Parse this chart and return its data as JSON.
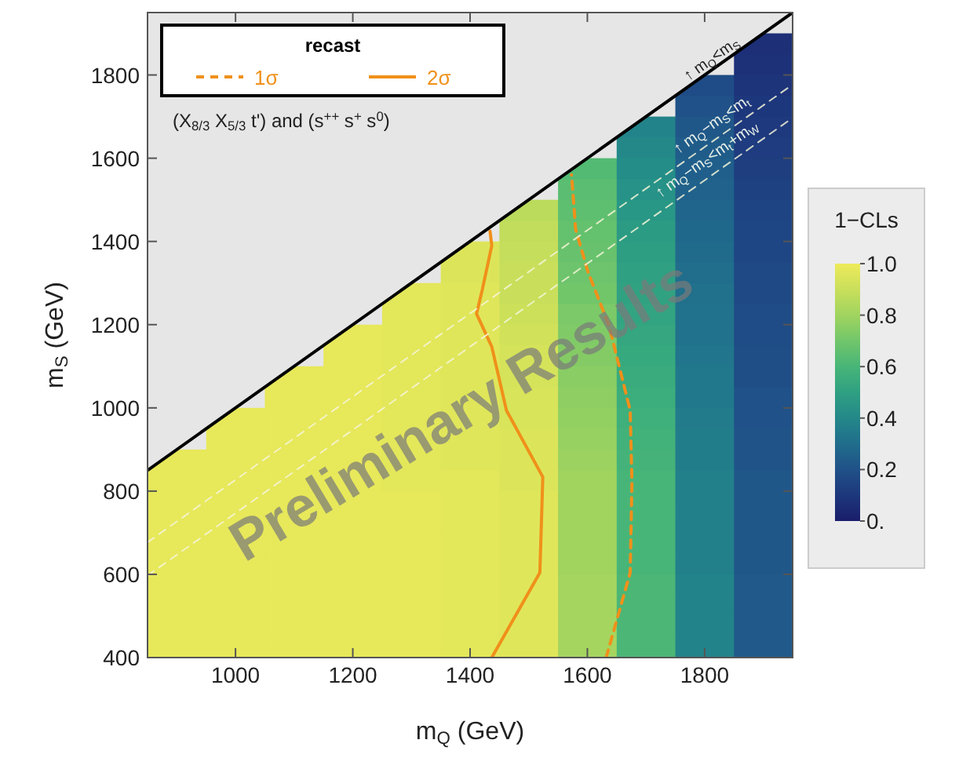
{
  "chart_data": {
    "type": "heatmap",
    "xlabel": "m$_{Q}$ (GeV)",
    "ylabel": "m$_{S}$ (GeV)",
    "clabel": "1−CLs",
    "legend_title": "recast",
    "legend": "top left",
    "x": [
      900,
      1000,
      1100,
      1200,
      1300,
      1400,
      1500,
      1600,
      1700,
      1800,
      1900
    ],
    "y": [
      1875,
      1825,
      1775,
      1725,
      1675,
      1625,
      1575,
      1525,
      1475,
      1425,
      1375,
      1325,
      1275,
      1225,
      1175,
      1125,
      1075,
      1025,
      975,
      925,
      875,
      825,
      775,
      725,
      675,
      625,
      575,
      525,
      475,
      425
    ],
    "xlim": [
      850,
      1950
    ],
    "xticks": [
      1000,
      1200,
      1400,
      1600,
      1800
    ],
    "ylim": [
      400,
      1950
    ],
    "yticks": [
      400,
      600,
      800,
      1000,
      1200,
      1400,
      1600,
      1800
    ],
    "clim": [
      0,
      1
    ],
    "cticks": [
      {
        "value": 0,
        "label": "0."
      },
      0.2,
      0.4,
      0.6,
      0.8,
      {
        "value": 1,
        "label": "1.0"
      }
    ],
    "cells": [
      [
        null,
        null,
        null,
        null,
        null,
        null,
        null,
        null,
        null,
        null,
        0.07
      ],
      [
        null,
        null,
        null,
        null,
        null,
        null,
        null,
        null,
        null,
        null,
        0.08
      ],
      [
        null,
        null,
        null,
        null,
        null,
        null,
        null,
        null,
        null,
        0.18,
        0.09
      ],
      [
        null,
        null,
        null,
        null,
        null,
        null,
        null,
        null,
        null,
        0.2,
        0.1
      ],
      [
        null,
        null,
        null,
        null,
        null,
        null,
        null,
        null,
        0.38,
        0.22,
        0.11
      ],
      [
        null,
        null,
        null,
        null,
        null,
        null,
        null,
        null,
        0.4,
        0.24,
        0.12
      ],
      [
        null,
        null,
        null,
        null,
        null,
        null,
        null,
        0.63,
        0.42,
        0.25,
        0.13
      ],
      [
        null,
        null,
        null,
        null,
        null,
        null,
        null,
        0.65,
        0.44,
        0.26,
        0.14
      ],
      [
        null,
        null,
        null,
        null,
        null,
        null,
        0.86,
        0.66,
        0.46,
        0.27,
        0.15
      ],
      [
        null,
        null,
        null,
        null,
        null,
        null,
        0.88,
        0.67,
        0.48,
        0.28,
        0.16
      ],
      [
        null,
        null,
        null,
        null,
        null,
        0.95,
        0.89,
        0.68,
        0.49,
        0.29,
        0.16
      ],
      [
        null,
        null,
        null,
        null,
        null,
        0.95,
        0.9,
        0.69,
        0.5,
        0.3,
        0.17
      ],
      [
        null,
        null,
        null,
        null,
        0.97,
        0.96,
        0.9,
        0.7,
        0.51,
        0.31,
        0.17
      ],
      [
        null,
        null,
        null,
        null,
        0.97,
        0.96,
        0.91,
        0.72,
        0.52,
        0.32,
        0.18
      ],
      [
        null,
        null,
        null,
        0.98,
        0.97,
        0.96,
        0.92,
        0.73,
        0.53,
        0.32,
        0.18
      ],
      [
        null,
        null,
        null,
        0.98,
        0.97,
        0.96,
        0.93,
        0.74,
        0.54,
        0.33,
        0.19
      ],
      [
        null,
        null,
        0.98,
        0.98,
        0.97,
        0.96,
        0.93,
        0.75,
        0.55,
        0.34,
        0.19
      ],
      [
        null,
        null,
        0.98,
        0.98,
        0.97,
        0.96,
        0.94,
        0.76,
        0.56,
        0.34,
        0.2
      ],
      [
        null,
        0.98,
        0.98,
        0.98,
        0.97,
        0.96,
        0.94,
        0.77,
        0.57,
        0.35,
        0.2
      ],
      [
        null,
        0.98,
        0.98,
        0.98,
        0.97,
        0.96,
        0.95,
        0.78,
        0.58,
        0.36,
        0.21
      ],
      [
        0.98,
        0.98,
        0.98,
        0.98,
        0.97,
        0.96,
        0.95,
        0.79,
        0.59,
        0.36,
        0.21
      ],
      [
        0.98,
        0.98,
        0.98,
        0.98,
        0.97,
        0.97,
        0.95,
        0.8,
        0.6,
        0.37,
        0.22
      ],
      [
        0.98,
        0.98,
        0.98,
        0.98,
        0.98,
        0.97,
        0.96,
        0.8,
        0.6,
        0.37,
        0.22
      ],
      [
        0.98,
        0.98,
        0.98,
        0.98,
        0.98,
        0.97,
        0.96,
        0.8,
        0.6,
        0.37,
        0.22
      ],
      [
        0.98,
        0.98,
        0.98,
        0.98,
        0.98,
        0.97,
        0.96,
        0.8,
        0.6,
        0.37,
        0.22
      ],
      [
        0.98,
        0.98,
        0.98,
        0.98,
        0.98,
        0.97,
        0.96,
        0.8,
        0.6,
        0.37,
        0.22
      ],
      [
        0.98,
        0.98,
        0.98,
        0.98,
        0.98,
        0.97,
        0.96,
        0.81,
        0.61,
        0.38,
        0.23
      ],
      [
        0.98,
        0.98,
        0.98,
        0.98,
        0.98,
        0.97,
        0.96,
        0.81,
        0.61,
        0.38,
        0.23
      ],
      [
        0.98,
        0.98,
        0.98,
        0.98,
        0.98,
        0.97,
        0.96,
        0.81,
        0.61,
        0.38,
        0.23
      ],
      [
        0.98,
        0.98,
        0.98,
        0.98,
        0.98,
        0.97,
        0.96,
        0.81,
        0.61,
        0.38,
        0.23
      ]
    ],
    "series": [
      {
        "type": "line",
        "name": "1σ",
        "color": "#f0901a",
        "line_style": "dashed",
        "x": [
          1632,
          1673,
          1676,
          1673,
          1637,
          1601,
          1580,
          1573
        ],
        "values": [
          400,
          604,
          820,
          994,
          1197,
          1327,
          1429,
          1560
        ]
      },
      {
        "type": "line",
        "name": "2σ",
        "color": "#f0901a",
        "line_style": "solid",
        "x": [
          1437,
          1519,
          1524,
          1462,
          1437,
          1411,
          1421,
          1437,
          1434
        ],
        "values": [
          400,
          604,
          834,
          994,
          1147,
          1226,
          1285,
          1390,
          1425
        ]
      },
      {
        "type": "line",
        "color": "#000000",
        "line_style": "solid",
        "x": [
          850,
          1950
        ],
        "values": [
          850,
          1950
        ]
      },
      {
        "type": "line",
        "color": "#f4f4d8",
        "line_style": "dashed",
        "x": [
          850,
          1950
        ],
        "values": [
          677,
          1777
        ]
      },
      {
        "type": "line",
        "color": "#f4f4d8",
        "line_style": "dashed",
        "x": [
          850,
          1950
        ],
        "values": [
          597,
          1697
        ]
      }
    ],
    "annotations": [
      "(X$_{8/3}$ X$_{5/3}$ t') and (s$^{++}$ s$^{+}$ s$^{0}$)",
      "Preliminary Results",
      "↑ m$_{Q}$<m$_{S}$",
      "↑ m$_{Q}$−m$_{S}$<m$_{t}$",
      "↑ m$_{Q}$−m$_{S}$<m$_{t}$+m$_{W}$"
    ]
  }
}
